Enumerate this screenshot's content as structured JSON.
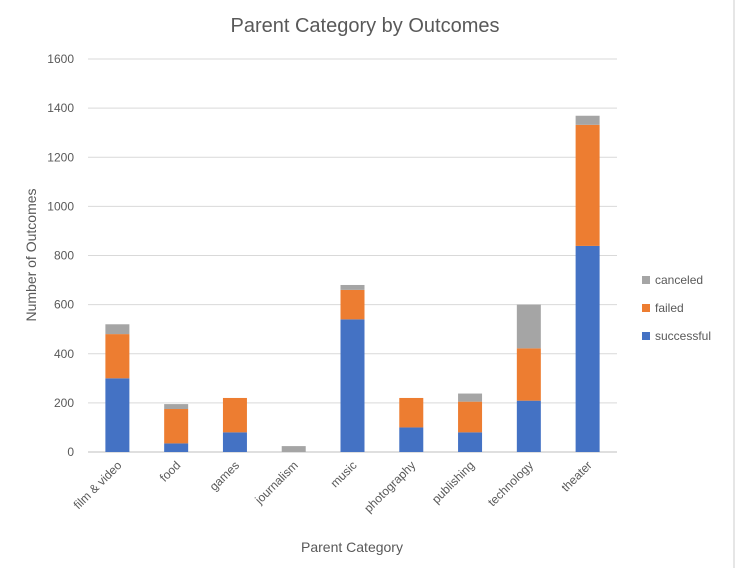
{
  "chart_data": {
    "type": "bar",
    "stacked": true,
    "title": "Parent Category by Outcomes",
    "xlabel": "Parent Category",
    "ylabel": "Number of Outcomes",
    "ylim": [
      0,
      1600
    ],
    "yticks": [
      "0",
      "200",
      "400",
      "600",
      "800",
      "1000",
      "1200",
      "1400",
      "1600"
    ],
    "grid": true,
    "legend_position": "right",
    "categories": [
      "film & video",
      "food",
      "games",
      "journalism",
      "music",
      "photography",
      "publishing",
      "technology",
      "theater"
    ],
    "series": [
      {
        "name": "successful",
        "color": "#4472C4",
        "values": [
          300,
          35,
          80,
          0,
          540,
          100,
          80,
          209,
          839
        ]
      },
      {
        "name": "failed",
        "color": "#ED7D31",
        "values": [
          180,
          140,
          140,
          0,
          120,
          120,
          125,
          213,
          493
        ]
      },
      {
        "name": "canceled",
        "color": "#A5A5A5",
        "values": [
          40,
          20,
          0,
          24,
          20,
          0,
          33,
          178,
          37
        ]
      }
    ]
  }
}
